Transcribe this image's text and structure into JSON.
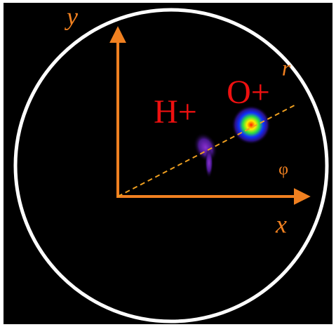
{
  "labels": {
    "y_axis": "y",
    "x_axis": "x",
    "radius": "r",
    "angle": "φ",
    "hydrogen": "H+",
    "oxygen": "O+"
  }
}
